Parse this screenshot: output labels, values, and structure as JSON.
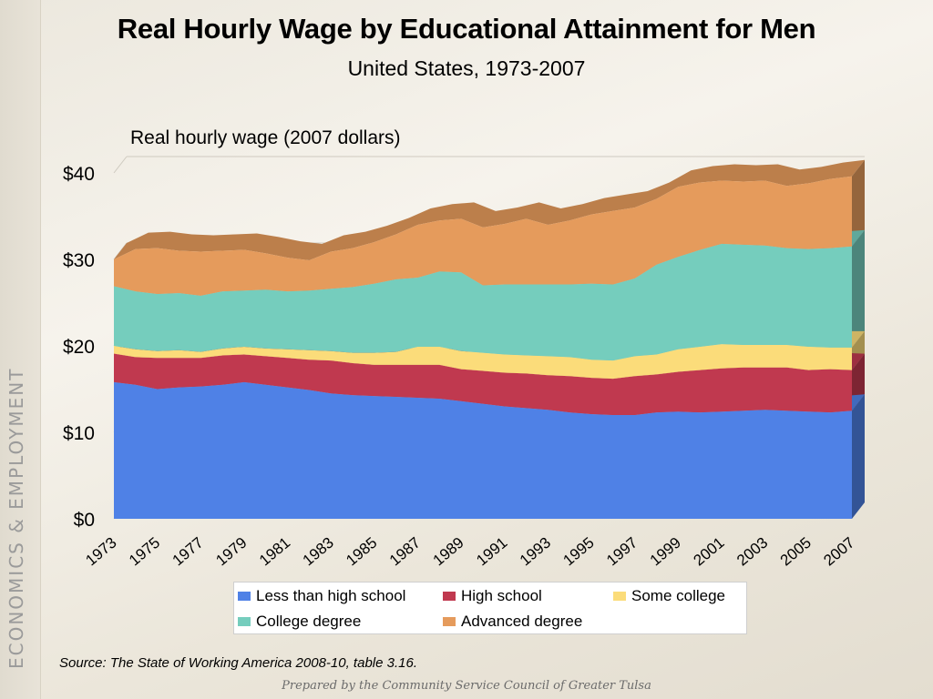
{
  "side_label": "ECONOMICS & EMPLOYMENT",
  "title": "Real Hourly Wage by Educational Attainment for Men",
  "subtitle": "United States, 1973-2007",
  "source": "Source:  The State of Working America 2008-10, table 3.16.",
  "footer": "Prepared by the Community Service Council of Greater Tulsa",
  "legend": [
    {
      "label": "Less than high school",
      "color": "#4f81e6"
    },
    {
      "label": "High school",
      "color": "#c0394f"
    },
    {
      "label": "Some college",
      "color": "#fbdc7a"
    },
    {
      "label": "College degree",
      "color": "#75cdbd"
    },
    {
      "label": "Advanced degree",
      "color": "#e59b5c"
    }
  ],
  "chart_data": {
    "type": "area",
    "stacked": true,
    "title": "Real Hourly Wage by Educational Attainment for Men",
    "subtitle": "United States, 1973-2007",
    "ylabel": "Real hourly wage (2007 dollars)",
    "ylim": [
      0,
      40
    ],
    "y_ticks": [
      "$0",
      "$10",
      "$20",
      "$30",
      "$40"
    ],
    "y_tick_values": [
      0,
      10,
      20,
      30,
      40
    ],
    "x_tick_labels": [
      "1973",
      "1975",
      "1977",
      "1979",
      "1981",
      "1983",
      "1985",
      "1987",
      "1989",
      "1991",
      "1993",
      "1995",
      "1997",
      "1999",
      "2001",
      "2003",
      "2005",
      "2007"
    ],
    "x": [
      1973,
      1974,
      1975,
      1976,
      1977,
      1978,
      1979,
      1980,
      1981,
      1982,
      1983,
      1984,
      1985,
      1986,
      1987,
      1988,
      1989,
      1990,
      1991,
      1992,
      1993,
      1994,
      1995,
      1996,
      1997,
      1998,
      1999,
      2000,
      2001,
      2002,
      2003,
      2004,
      2005,
      2006,
      2007
    ],
    "legend_position": "bottom",
    "grid": true,
    "series": [
      {
        "name": "Less than high school",
        "color": "#4f81e6",
        "values": [
          15.8,
          15.5,
          15.0,
          15.2,
          15.3,
          15.5,
          15.8,
          15.5,
          15.2,
          14.9,
          14.5,
          14.3,
          14.2,
          14.1,
          14.0,
          13.9,
          13.6,
          13.3,
          13.0,
          12.8,
          12.6,
          12.3,
          12.1,
          12.0,
          12.0,
          12.3,
          12.4,
          12.3,
          12.4,
          12.5,
          12.6,
          12.5,
          12.4,
          12.3,
          12.5
        ]
      },
      {
        "name": "High school",
        "color": "#c0394f",
        "values": [
          3.3,
          3.2,
          3.6,
          3.4,
          3.3,
          3.4,
          3.2,
          3.3,
          3.4,
          3.5,
          3.8,
          3.7,
          3.6,
          3.7,
          3.8,
          3.9,
          3.7,
          3.8,
          3.9,
          4.0,
          4.0,
          4.2,
          4.2,
          4.2,
          4.5,
          4.4,
          4.6,
          4.9,
          5.0,
          5.0,
          4.9,
          5.0,
          4.8,
          5.0,
          4.7
        ]
      },
      {
        "name": "Some college",
        "color": "#fbdc7a",
        "values": [
          0.9,
          0.9,
          0.8,
          0.9,
          0.7,
          0.8,
          0.9,
          0.9,
          1.0,
          1.1,
          1.1,
          1.2,
          1.4,
          1.5,
          2.1,
          2.1,
          2.1,
          2.1,
          2.1,
          2.1,
          2.2,
          2.2,
          2.1,
          2.1,
          2.3,
          2.3,
          2.6,
          2.7,
          2.8,
          2.6,
          2.6,
          2.6,
          2.7,
          2.5,
          2.6
        ]
      },
      {
        "name": "College degree",
        "color": "#75cdbd",
        "values": [
          6.9,
          6.7,
          6.6,
          6.6,
          6.5,
          6.6,
          6.5,
          6.8,
          6.7,
          6.9,
          7.2,
          7.6,
          8.0,
          8.4,
          8.0,
          8.7,
          9.1,
          7.8,
          8.1,
          8.2,
          8.3,
          8.4,
          8.8,
          8.8,
          9.0,
          10.4,
          10.7,
          11.2,
          11.6,
          11.6,
          11.5,
          11.2,
          11.3,
          11.5,
          11.7
        ]
      },
      {
        "name": "Advanced degree",
        "color": "#e59b5c",
        "values": [
          3.1,
          4.9,
          5.3,
          4.9,
          5.1,
          4.7,
          4.7,
          4.2,
          3.9,
          3.5,
          4.3,
          4.5,
          4.8,
          5.2,
          6.1,
          5.9,
          6.2,
          6.7,
          7.0,
          7.6,
          6.9,
          7.4,
          8.0,
          8.5,
          8.2,
          7.6,
          8.1,
          7.8,
          7.3,
          7.3,
          7.5,
          7.2,
          7.6,
          8.0,
          8.1
        ]
      }
    ]
  }
}
